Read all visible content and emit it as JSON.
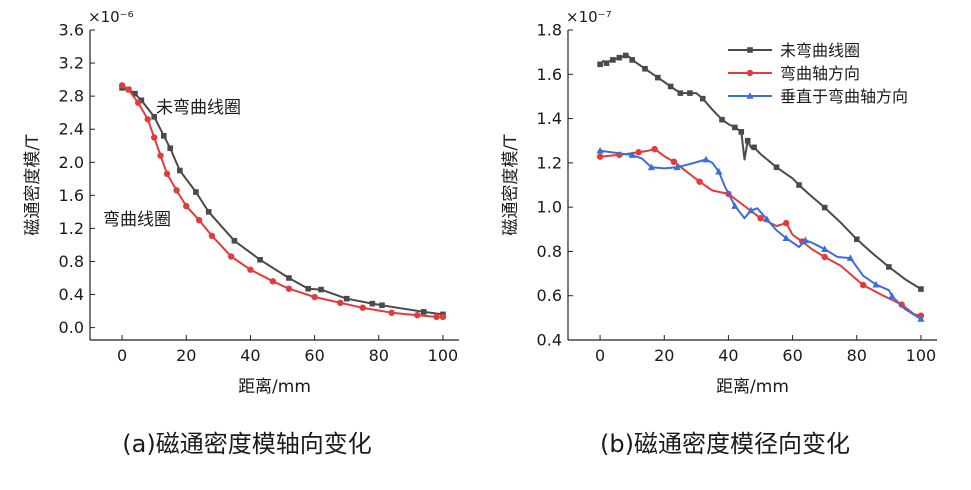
{
  "chart_data": [
    {
      "type": "line",
      "caption": "(a)磁通密度模轴向变化",
      "xlabel": "距离/mm",
      "ylabel": "磁通密度模/T",
      "exponent": "×10⁻⁶",
      "xlim": [
        -10,
        105
      ],
      "ylim": [
        -0.15,
        3.6
      ],
      "xticks": [
        0,
        20,
        40,
        60,
        80,
        100
      ],
      "yticks": [
        0.0,
        0.4,
        0.8,
        1.2,
        1.6,
        2.0,
        2.4,
        2.8,
        3.2,
        3.6
      ],
      "ytick_labels": [
        "0.0",
        "0.4",
        "0.8",
        "1.2",
        "1.6",
        "2.0",
        "2.4",
        "2.8",
        "3.2",
        "3.6"
      ],
      "grid": false,
      "series": [
        {
          "name": "未弯曲线圈",
          "color": "#4a4a4a",
          "marker": "square",
          "x": [
            0,
            2,
            4,
            6,
            10,
            13,
            15,
            18,
            23,
            27,
            35,
            43,
            52,
            58,
            62,
            70,
            78,
            81,
            94,
            100
          ],
          "y": [
            2.9,
            2.88,
            2.83,
            2.75,
            2.55,
            2.32,
            2.17,
            1.9,
            1.64,
            1.4,
            1.05,
            0.82,
            0.6,
            0.47,
            0.46,
            0.35,
            0.29,
            0.27,
            0.19,
            0.16
          ]
        },
        {
          "name": "弯曲线圈",
          "color": "#e03c3c",
          "marker": "circle",
          "x": [
            0,
            2,
            5,
            8,
            10,
            12,
            14,
            17,
            20,
            24,
            28,
            34,
            40,
            47,
            52,
            60,
            68,
            75,
            84,
            92,
            98,
            100
          ],
          "y": [
            2.93,
            2.88,
            2.72,
            2.52,
            2.3,
            2.08,
            1.86,
            1.66,
            1.47,
            1.3,
            1.11,
            0.86,
            0.7,
            0.56,
            0.47,
            0.37,
            0.3,
            0.24,
            0.18,
            0.15,
            0.13,
            0.13
          ]
        }
      ],
      "annotations": [
        "未弯曲线圈",
        "弯曲线圈"
      ]
    },
    {
      "type": "line",
      "caption": "(b)磁通密度模径向变化",
      "xlabel": "距离/mm",
      "ylabel": "磁通密度模/T",
      "exponent": "×10⁻⁷",
      "xlim": [
        -10,
        105
      ],
      "ylim": [
        0.4,
        1.8
      ],
      "xticks": [
        0,
        20,
        40,
        60,
        80,
        100
      ],
      "yticks": [
        0.4,
        0.6,
        0.8,
        1.0,
        1.2,
        1.4,
        1.6,
        1.8
      ],
      "ytick_labels": [
        "0.4",
        "0.6",
        "0.8",
        "1.0",
        "1.2",
        "1.4",
        "1.6",
        "1.8"
      ],
      "grid": false,
      "legend": "top-right",
      "series": [
        {
          "name": "未弯曲线圈",
          "color": "#4a4a4a",
          "marker": "square",
          "x": [
            0,
            1,
            2,
            3,
            4,
            5,
            6,
            7,
            8,
            9,
            10,
            12,
            14,
            16,
            18,
            20,
            22,
            24,
            25,
            26,
            28,
            30,
            32,
            35,
            38,
            40,
            42,
            43,
            44,
            45,
            46,
            47,
            48,
            50,
            55,
            60,
            62,
            65,
            70,
            75,
            80,
            85,
            90,
            95,
            100
          ],
          "y": [
            1.645,
            1.66,
            1.65,
            1.66,
            1.665,
            1.67,
            1.675,
            1.68,
            1.685,
            1.68,
            1.665,
            1.645,
            1.625,
            1.605,
            1.585,
            1.565,
            1.545,
            1.525,
            1.515,
            1.515,
            1.515,
            1.515,
            1.49,
            1.44,
            1.395,
            1.375,
            1.36,
            1.35,
            1.34,
            1.215,
            1.3,
            1.27,
            1.27,
            1.24,
            1.18,
            1.13,
            1.1,
            1.06,
            0.998,
            0.93,
            0.855,
            0.79,
            0.73,
            0.675,
            0.63
          ]
        },
        {
          "name": "弯曲轴方向",
          "color": "#e03c3c",
          "marker": "circle",
          "x": [
            0,
            3,
            6,
            9,
            12,
            15,
            17,
            20,
            23,
            27,
            31,
            35,
            40,
            45,
            50,
            55,
            58,
            60,
            63,
            66,
            70,
            75,
            82,
            88,
            94,
            98,
            100
          ],
          "y": [
            1.228,
            1.232,
            1.236,
            1.242,
            1.248,
            1.255,
            1.262,
            1.23,
            1.205,
            1.16,
            1.115,
            1.075,
            1.06,
            1.005,
            0.95,
            0.915,
            0.928,
            0.875,
            0.845,
            0.81,
            0.775,
            0.735,
            0.648,
            0.602,
            0.56,
            0.515,
            0.51
          ]
        },
        {
          "name": "垂直于弯曲轴方向",
          "color": "#3b6fd6",
          "marker": "triangle",
          "x": [
            0,
            5,
            10,
            13,
            16,
            20,
            24,
            28,
            33,
            35,
            37,
            39,
            42,
            45,
            47,
            49,
            52,
            55,
            58,
            62,
            64,
            66,
            70,
            74,
            78,
            82,
            86,
            90,
            91,
            95,
            100
          ],
          "y": [
            1.255,
            1.245,
            1.235,
            1.22,
            1.18,
            1.175,
            1.18,
            1.195,
            1.215,
            1.2,
            1.16,
            1.09,
            1.005,
            0.95,
            0.985,
            0.995,
            0.945,
            0.895,
            0.86,
            0.82,
            0.85,
            0.84,
            0.81,
            0.775,
            0.77,
            0.69,
            0.65,
            0.625,
            0.598,
            0.54,
            0.495
          ]
        }
      ]
    }
  ]
}
